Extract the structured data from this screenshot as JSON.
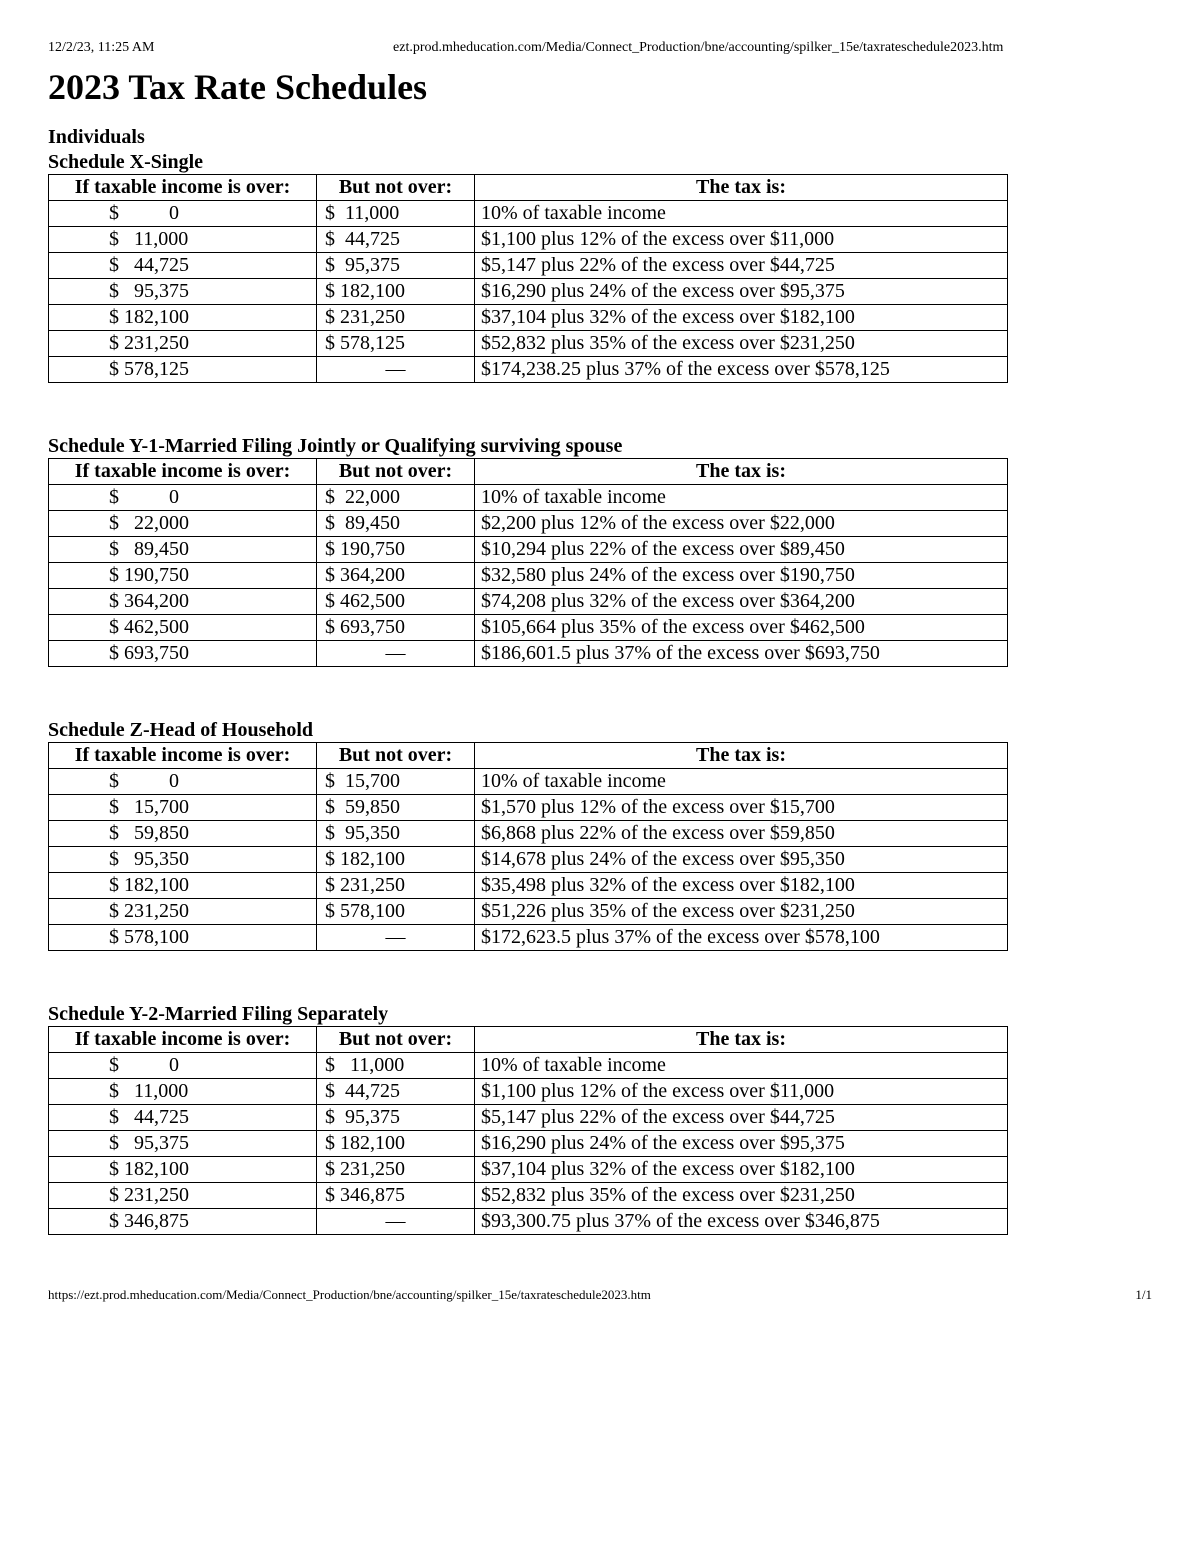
{
  "header": {
    "timestamp": "12/2/23, 11:25 AM",
    "url": "ezt.prod.mheducation.com/Media/Connect_Production/bne/accounting/spilker_15e/taxrateschedule2023.htm"
  },
  "page_title": "2023 Tax Rate Schedules",
  "section_label": "Individuals",
  "columns": {
    "over": "If taxable income is over:",
    "not_over": "But not over:",
    "tax": "The tax is:"
  },
  "schedules": [
    {
      "title": "Schedule X-Single",
      "rows": [
        {
          "over": "$          0",
          "not_over": "$  11,000",
          "tax": "10% of taxable income"
        },
        {
          "over": "$   11,000",
          "not_over": "$  44,725",
          "tax": "$1,100 plus 12% of the excess over $11,000"
        },
        {
          "over": "$   44,725",
          "not_over": "$  95,375",
          "tax": "$5,147 plus 22% of the excess over $44,725"
        },
        {
          "over": "$   95,375",
          "not_over": "$ 182,100",
          "tax": "$16,290 plus 24% of the excess over $95,375"
        },
        {
          "over": "$ 182,100",
          "not_over": "$ 231,250",
          "tax": "$37,104 plus 32% of the excess over $182,100"
        },
        {
          "over": "$ 231,250",
          "not_over": "$ 578,125",
          "tax": "$52,832 plus 35% of the excess over $231,250"
        },
        {
          "over": "$ 578,125",
          "not_over": "—",
          "tax": "$174,238.25 plus 37% of the excess over $578,125"
        }
      ]
    },
    {
      "title": "Schedule Y-1-Married Filing Jointly or Qualifying surviving spouse",
      "rows": [
        {
          "over": "$          0",
          "not_over": "$  22,000",
          "tax": "10% of taxable income"
        },
        {
          "over": "$   22,000",
          "not_over": "$  89,450",
          "tax": "$2,200 plus 12% of the excess over $22,000"
        },
        {
          "over": "$   89,450",
          "not_over": "$ 190,750",
          "tax": "$10,294 plus 22% of the excess over $89,450"
        },
        {
          "over": "$ 190,750",
          "not_over": "$ 364,200",
          "tax": "$32,580 plus 24% of the excess over $190,750"
        },
        {
          "over": "$ 364,200",
          "not_over": "$ 462,500",
          "tax": "$74,208 plus 32% of the excess over $364,200"
        },
        {
          "over": "$ 462,500",
          "not_over": "$ 693,750",
          "tax": "$105,664 plus 35% of the excess over $462,500"
        },
        {
          "over": "$ 693,750",
          "not_over": "—",
          "tax": "$186,601.5 plus 37% of the excess over $693,750"
        }
      ]
    },
    {
      "title": "Schedule Z-Head of Household",
      "rows": [
        {
          "over": "$          0",
          "not_over": "$  15,700",
          "tax": "10% of taxable income"
        },
        {
          "over": "$   15,700",
          "not_over": "$  59,850",
          "tax": "$1,570 plus 12% of the excess over $15,700"
        },
        {
          "over": "$   59,850",
          "not_over": "$  95,350",
          "tax": "$6,868 plus 22% of the excess over $59,850"
        },
        {
          "over": "$   95,350",
          "not_over": "$ 182,100",
          "tax": "$14,678 plus 24% of the excess over $95,350"
        },
        {
          "over": "$ 182,100",
          "not_over": "$ 231,250",
          "tax": "$35,498 plus 32% of the excess over $182,100"
        },
        {
          "over": "$ 231,250",
          "not_over": "$ 578,100",
          "tax": "$51,226 plus 35% of the excess over $231,250"
        },
        {
          "over": "$ 578,100",
          "not_over": "—",
          "tax": "$172,623.5 plus 37% of the excess over $578,100"
        }
      ]
    },
    {
      "title": "Schedule Y-2-Married Filing Separately",
      "rows": [
        {
          "over": "$          0",
          "not_over": "$   11,000",
          "tax": "10% of taxable income"
        },
        {
          "over": "$   11,000",
          "not_over": "$  44,725",
          "tax": "$1,100 plus 12% of the excess over $11,000"
        },
        {
          "over": "$   44,725",
          "not_over": "$  95,375",
          "tax": "$5,147 plus 22% of the excess over $44,725"
        },
        {
          "over": "$   95,375",
          "not_over": "$ 182,100",
          "tax": "$16,290 plus 24% of the excess over $95,375"
        },
        {
          "over": "$ 182,100",
          "not_over": "$ 231,250",
          "tax": "$37,104 plus 32% of the excess over $182,100"
        },
        {
          "over": "$ 231,250",
          "not_over": "$ 346,875",
          "tax": "$52,832 plus 35% of the excess over $231,250"
        },
        {
          "over": "$ 346,875",
          "not_over": "—",
          "tax": "$93,300.75 plus 37% of the excess over $346,875"
        }
      ]
    }
  ],
  "footer": {
    "url": "https://ezt.prod.mheducation.com/Media/Connect_Production/bne/accounting/spilker_15e/taxrateschedule2023.htm",
    "page": "1/1"
  }
}
